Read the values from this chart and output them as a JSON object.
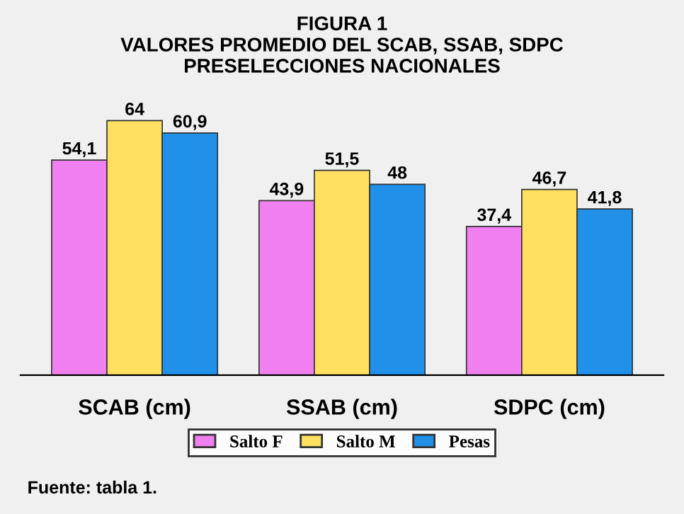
{
  "chart_data": {
    "type": "bar",
    "title": "FIGURA 1\nVALORES PROMEDIO DEL SCAB, SSAB, SDPC\nPRESELECCIONES NACIONALES",
    "categories": [
      "SCAB (cm)",
      "SSAB (cm)",
      "SDPC (cm)"
    ],
    "series": [
      {
        "name": "Salto F",
        "color": "#f080f0",
        "values": [
          54.1,
          43.9,
          37.4
        ],
        "value_labels": [
          "54,1",
          "43,9",
          "37,4"
        ]
      },
      {
        "name": "Salto M",
        "color": "#ffe060",
        "values": [
          64,
          51.5,
          46.7
        ],
        "value_labels": [
          "64",
          "51,5",
          "46,7"
        ]
      },
      {
        "name": "Pesas",
        "color": "#2090e8",
        "values": [
          60.9,
          48,
          41.8
        ],
        "value_labels": [
          "60,9",
          "48",
          "41,8"
        ]
      }
    ],
    "legend": "bottom",
    "tick_labels": "x",
    "grid": false,
    "annotations": [
      "Fuente: tabla 1."
    ]
  }
}
